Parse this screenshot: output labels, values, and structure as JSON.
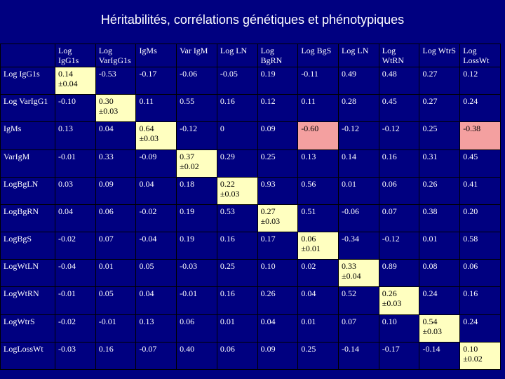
{
  "title": "Héritabilités, corrélations génétiques et phénotypiques",
  "corner": "",
  "columns": [
    "Log IgG1s",
    "Log VarIgG1s",
    "IgMs",
    "Var IgM",
    "Log LN",
    "Log BgRN",
    "Log BgS",
    "Log LN",
    "Log WtRN",
    "Log WtrS",
    "Log LossWt"
  ],
  "rows": [
    {
      "label": "Log IgG1s",
      "cells": [
        "0.14 ±0.04",
        "-0.53",
        "-0.17",
        "-0.06",
        "-0.05",
        "0.19",
        "-0.11",
        "0.49",
        "0.48",
        "0.27",
        "0.12"
      ]
    },
    {
      "label": "Log VarIgG1",
      "cells": [
        "-0.10",
        "0.30 ±0.03",
        "0.11",
        "0.55",
        "0.16",
        "0.12",
        "0.11",
        "0.28",
        "0.45",
        "0.27",
        "0.24"
      ]
    },
    {
      "label": "IgMs",
      "cells": [
        "0.13",
        "0.04",
        "0.64 ±0.03",
        "-0.12",
        "0",
        "0.09",
        "-0.60",
        "-0.12",
        "-0.12",
        "0.25",
        "-0.38"
      ]
    },
    {
      "label": "VarIgM",
      "cells": [
        "-0.01",
        "0.33",
        "-0.09",
        "0.37 ±0.02",
        "0.29",
        "0.25",
        "0.13",
        "0.14",
        "0.16",
        "0.31",
        "0.45"
      ]
    },
    {
      "label": "LogBgLN",
      "cells": [
        "0.03",
        "0.09",
        "0.04",
        "0.18",
        "0.22 ±0.03",
        "0.93",
        "0.56",
        "0.01",
        "0.06",
        "0.26",
        "0.41"
      ]
    },
    {
      "label": "LogBgRN",
      "cells": [
        "0.04",
        "0.06",
        "-0.02",
        "0.19",
        "0.53",
        "0.27 ±0.03",
        "0.51",
        "-0.06",
        "0.07",
        "0.38",
        "0.20"
      ]
    },
    {
      "label": "LogBgS",
      "cells": [
        "-0.02",
        "0.07",
        "-0.04",
        "0.19",
        "0.16",
        "0.17",
        "0.06 ±0.01",
        "-0.34",
        "-0.12",
        "0.01",
        "0.58"
      ]
    },
    {
      "label": "LogWtLN",
      "cells": [
        "-0.04",
        "0.01",
        "0.05",
        "-0.03",
        "0.25",
        "0.10",
        "0.02",
        "0.33 ±0.04",
        "0.89",
        "0.08",
        "0.06"
      ]
    },
    {
      "label": "LogWtRN",
      "cells": [
        "-0.01",
        "0.05",
        "0.04",
        "-0.01",
        "0.16",
        "0.26",
        "0.04",
        "0.52",
        "0.26 ±0.03",
        "0.24",
        "0.16"
      ]
    },
    {
      "label": "LogWtrS",
      "cells": [
        "-0.02",
        "-0.01",
        "0.13",
        "0.06",
        "0.01",
        "0.04",
        "0.01",
        "0.07",
        "0.10",
        "0.54 ±0.03",
        "0.24"
      ]
    },
    {
      "label": "LogLossWt",
      "cells": [
        "-0.03",
        "0.16",
        "-0.07",
        "0.40",
        "0.06",
        "0.09",
        "0.25",
        "-0.14",
        "-0.17",
        "-0.14",
        "0.10 ±0.02"
      ]
    }
  ],
  "highlight_colors": {
    "diagonal": "#ffffc0",
    "negative_strong": "#f4a0a0"
  },
  "highlighted_negative_cells": [
    [
      2,
      6
    ],
    [
      2,
      10
    ]
  ]
}
